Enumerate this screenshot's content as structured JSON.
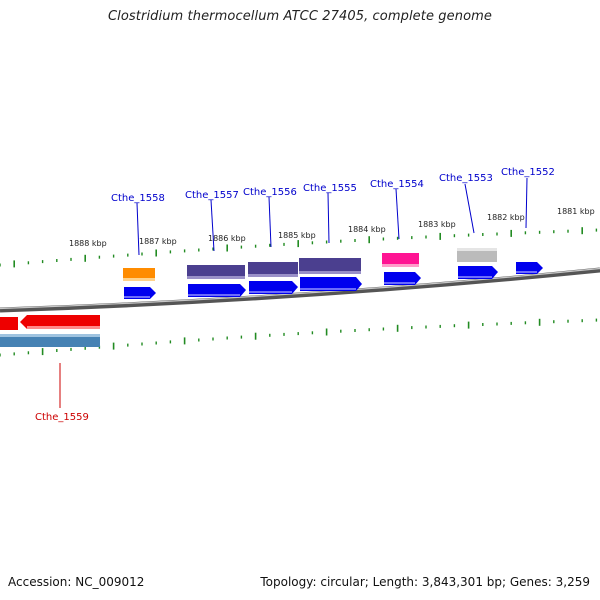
{
  "title": "Clostridium thermocellum ATCC 27405, complete genome",
  "footer": {
    "accession": "Accession: NC_009012",
    "topology": "Topology: circular; Length: 3,843,301 bp; Genes: 3,259"
  },
  "scale_labels": [
    "1888 kbp",
    "1887 kbp",
    "1886 kbp",
    "1885 kbp",
    "1884 kbp",
    "1883 kbp",
    "1882 kbp",
    "1881 kbp"
  ],
  "gene_labels": [
    "Cthe_1558",
    "Cthe_1557",
    "Cthe_1556",
    "Cthe_1555",
    "Cthe_1554",
    "Cthe_1553",
    "Cthe_1552",
    "Cthe_1559"
  ],
  "colors": {
    "label_forward": "#0000cc",
    "label_reverse": "#cc0000",
    "tick": "#228b22",
    "backbone": "#777777",
    "cds_forward": "#0000ee",
    "cds_reverse": "#ee0000",
    "orange_feature": "#ff8c00",
    "purple_feature": "#4b3f8f",
    "magenta_feature": "#ff1493",
    "gray_feature": "#bbbbbb",
    "steelblue_feature": "#4682b4"
  }
}
